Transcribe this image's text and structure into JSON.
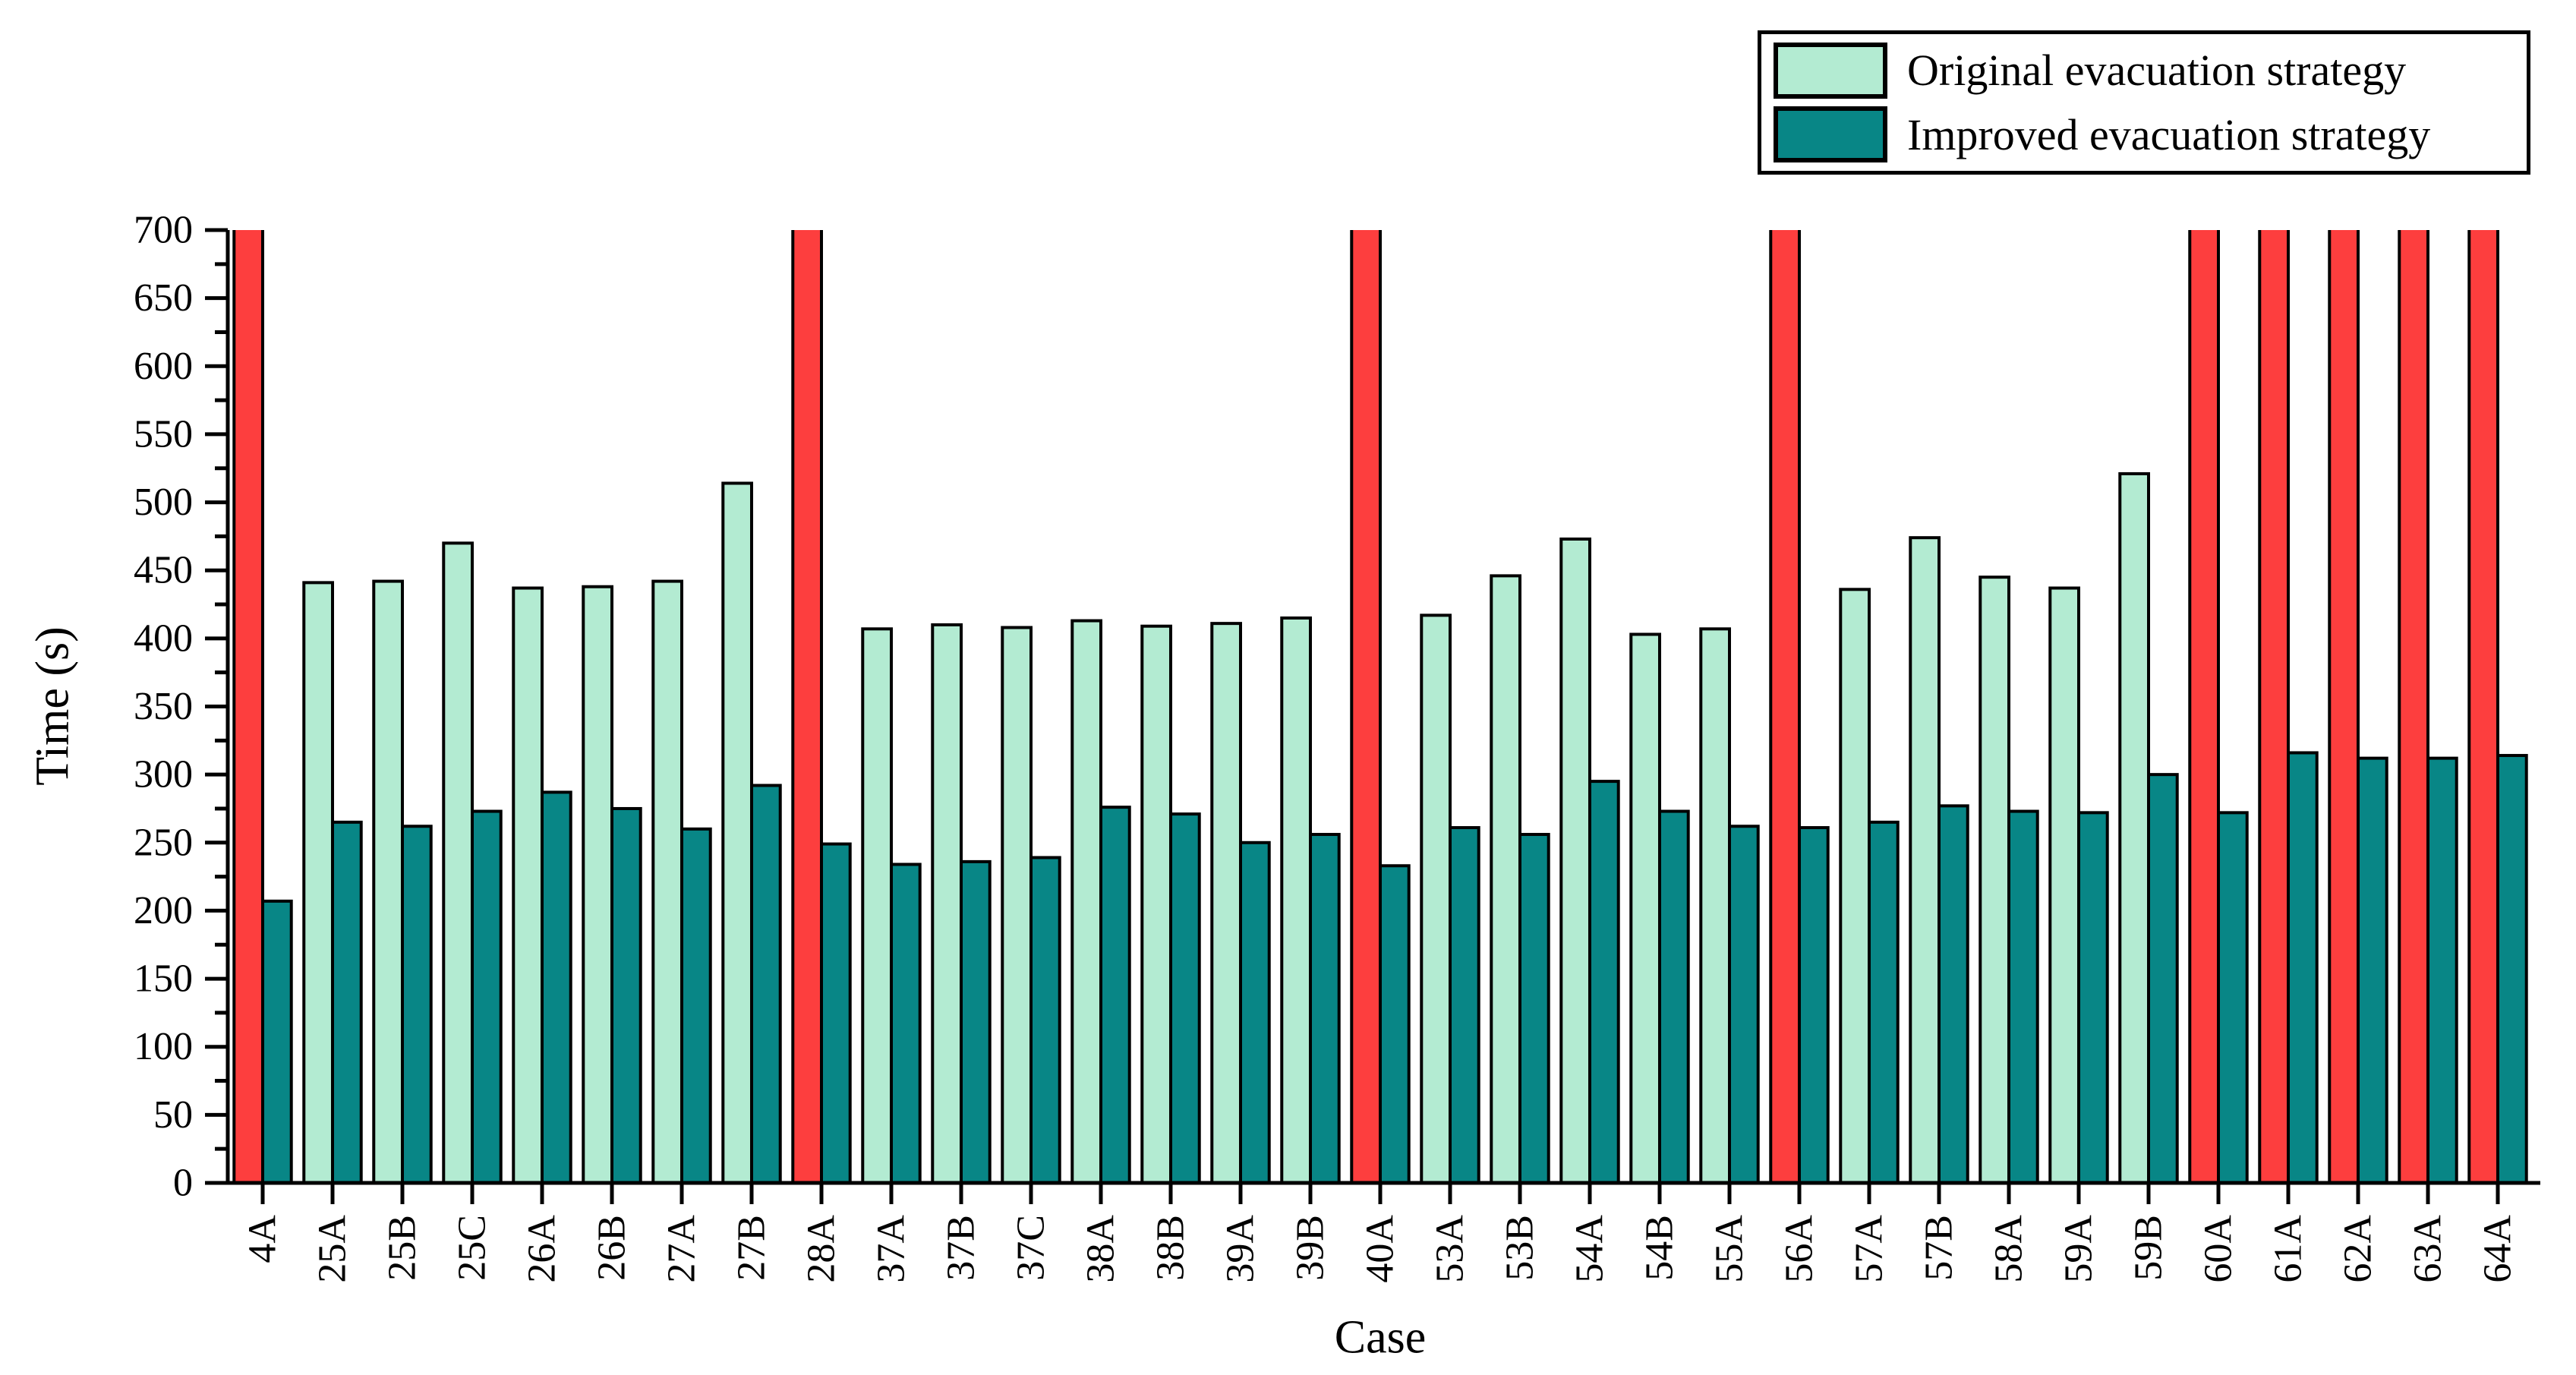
{
  "figure": {
    "background": "#ffffff",
    "description": "Grouped bar chart comparing evacuation times per case; red full-height bars indicate times exceeding the 700 s axis maximum"
  },
  "legend": {
    "items": [
      {
        "label": "Original evacuation strategy",
        "color": "#b3ebd2"
      },
      {
        "label": "Improved evacuation strategy",
        "color": "#088686"
      }
    ]
  },
  "chart_data": {
    "type": "bar",
    "title": "",
    "xlabel": "Case",
    "ylabel": "Time (s)",
    "ylim": [
      0,
      700
    ],
    "y_major_step": 50,
    "y_minor_step": 25,
    "grid": false,
    "legend_position": "top-right",
    "categories": [
      "4A",
      "25A",
      "25B",
      "25C",
      "26A",
      "26B",
      "27A",
      "27B",
      "28A",
      "37A",
      "37B",
      "37C",
      "38A",
      "38B",
      "39A",
      "39B",
      "40A",
      "53A",
      "53B",
      "54A",
      "54B",
      "55A",
      "56A",
      "57A",
      "57B",
      "58A",
      "59A",
      "59B",
      "60A",
      "61A",
      "62A",
      "63A",
      "64A"
    ],
    "series": [
      {
        "name": "Original evacuation strategy",
        "color": "#b3ebd2",
        "values": [
          null,
          441,
          442,
          470,
          437,
          438,
          442,
          514,
          null,
          407,
          410,
          408,
          413,
          409,
          411,
          415,
          null,
          417,
          446,
          473,
          403,
          407,
          null,
          436,
          474,
          445,
          437,
          521,
          null,
          null,
          null,
          null,
          null
        ],
        "exceeds_ymax": [
          true,
          false,
          false,
          false,
          false,
          false,
          false,
          false,
          true,
          false,
          false,
          false,
          false,
          false,
          false,
          false,
          true,
          false,
          false,
          false,
          false,
          false,
          true,
          false,
          false,
          false,
          false,
          false,
          true,
          true,
          true,
          true,
          true
        ]
      },
      {
        "name": "Improved evacuation strategy",
        "color": "#088686",
        "values": [
          207,
          265,
          262,
          273,
          287,
          275,
          260,
          292,
          249,
          234,
          236,
          239,
          276,
          271,
          250,
          256,
          233,
          261,
          256,
          295,
          273,
          262,
          261,
          265,
          277,
          273,
          272,
          300,
          272,
          316,
          312,
          312,
          314
        ]
      }
    ],
    "exceed_bar_color": "#fd3e3e",
    "bar_outline_color": "#000000",
    "axis_color": "#000000"
  }
}
